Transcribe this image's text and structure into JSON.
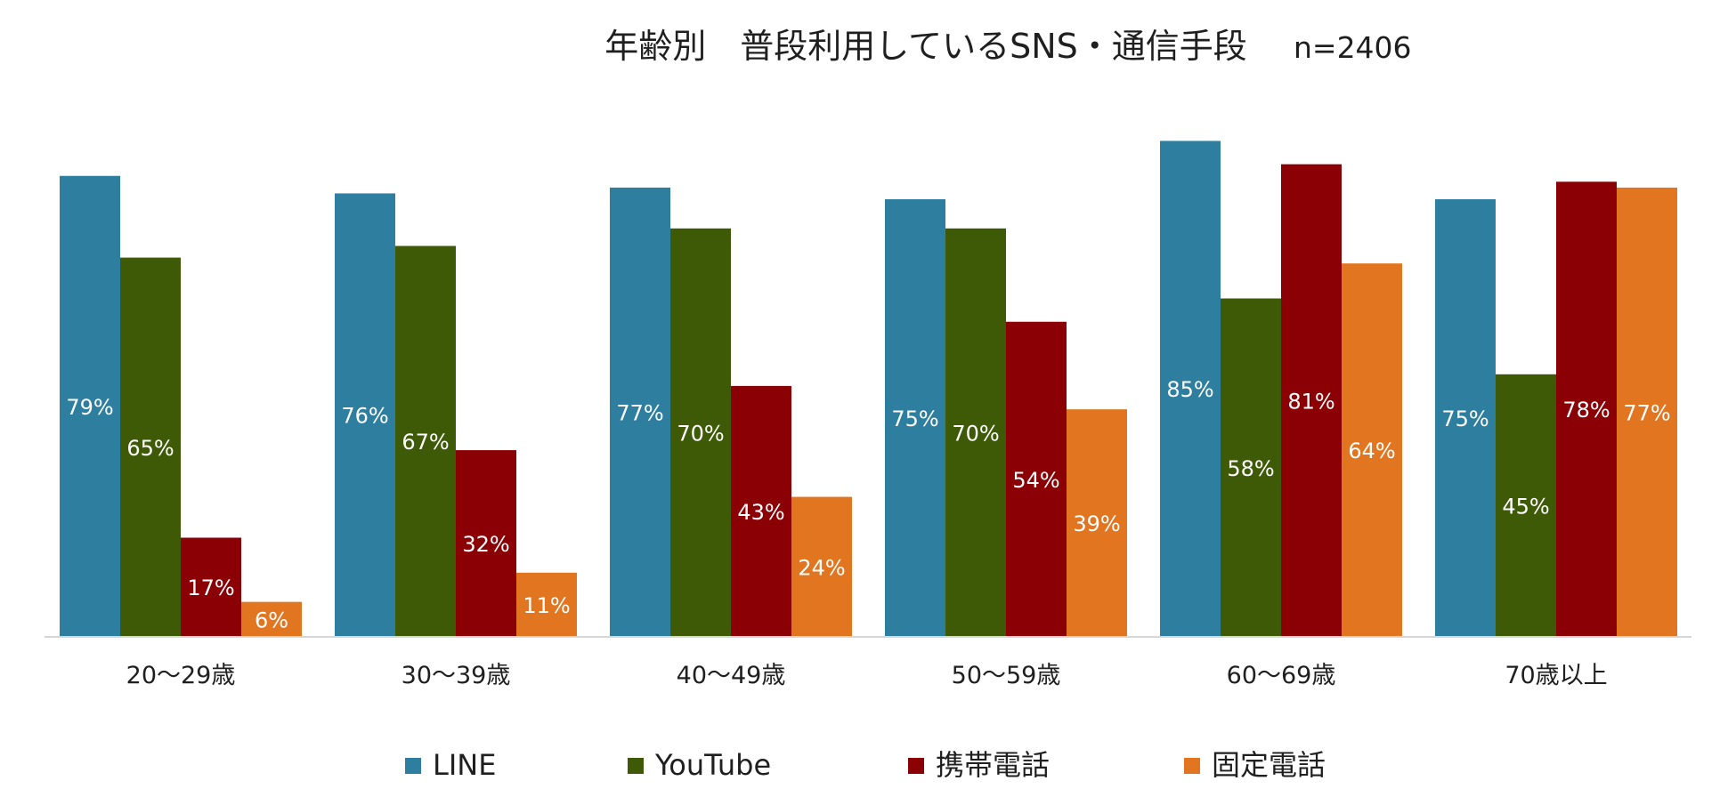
{
  "chart_data": {
    "type": "bar",
    "title": "年齢別　普段利用しているSNS・通信手段",
    "sample_size": "n=2406",
    "xlabel": "",
    "ylabel": "",
    "ylim": [
      0,
      100
    ],
    "grid": false,
    "legend_position": "bottom",
    "value_suffix": "%",
    "categories": [
      "20～29歳",
      "30～39歳",
      "40～49歳",
      "50～59歳",
      "60～69歳",
      "70歳以上"
    ],
    "series": [
      {
        "name": "LINE",
        "color": "#2e7ea0",
        "values": [
          79,
          76,
          77,
          75,
          85,
          75
        ]
      },
      {
        "name": "YouTube",
        "color": "#3e5a06",
        "values": [
          65,
          67,
          70,
          70,
          58,
          45
        ]
      },
      {
        "name": "携帯電話",
        "color": "#8b0004",
        "values": [
          17,
          32,
          43,
          54,
          81,
          78
        ]
      },
      {
        "name": "固定電話",
        "color": "#e27620",
        "values": [
          6,
          11,
          24,
          39,
          64,
          77
        ]
      }
    ],
    "axis_line_color": "#d6d6d6"
  }
}
